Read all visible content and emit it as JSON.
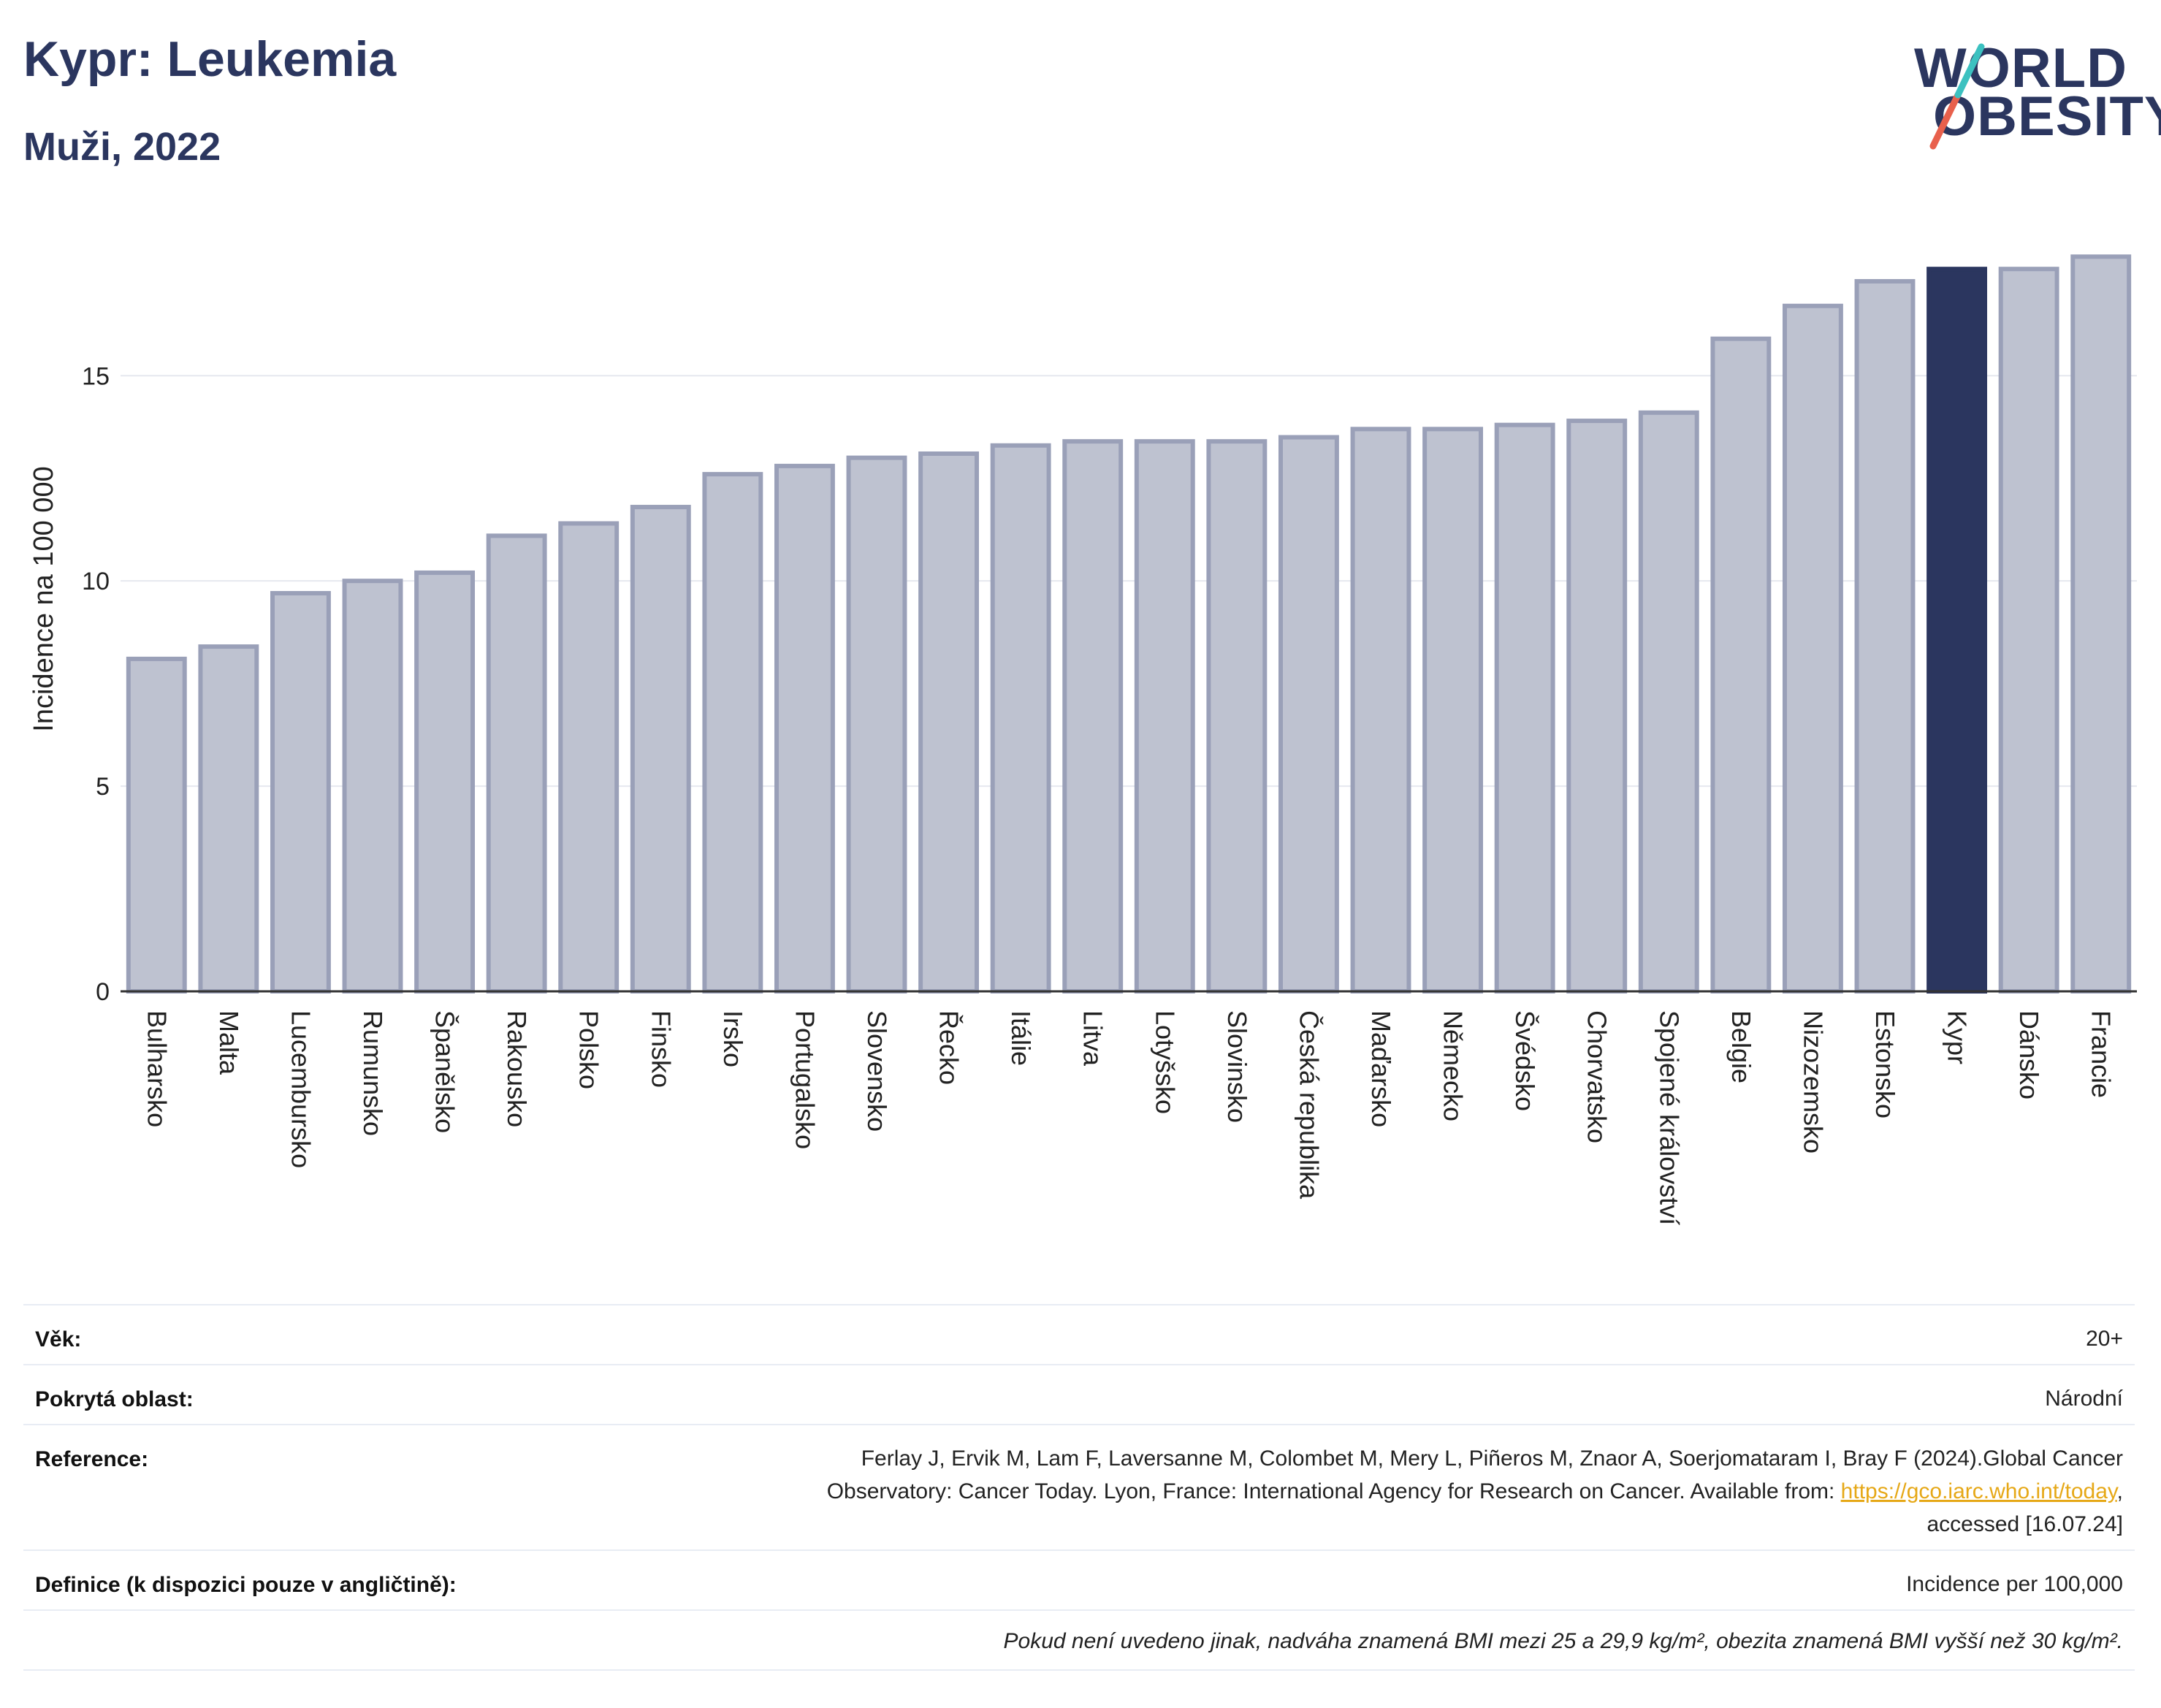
{
  "header": {
    "title": "Kypr: Leukemia",
    "subtitle": "Muži, 2022"
  },
  "logo": {
    "line1": "WORLD",
    "line2": "OBESITY"
  },
  "colors": {
    "bar_default": "#bec2d0",
    "bar_border": "#9aa0b8",
    "bar_highlight": "#2b365f",
    "gridline": "#e6e8ef",
    "text_primary": "#2b365f",
    "logo_slash_teal": "#3cc1c0",
    "logo_slash_red": "#e8604c"
  },
  "chart_data": {
    "type": "bar",
    "ylabel": "Incidence na 100 000",
    "xlabel": "",
    "ylim": [
      0,
      18.6
    ],
    "yticks": [
      0,
      5,
      10,
      15
    ],
    "grid": true,
    "highlight": "Kypr",
    "categories": [
      "Bulharsko",
      "Malta",
      "Lucembursko",
      "Rumunsko",
      "Španělsko",
      "Rakousko",
      "Polsko",
      "Finsko",
      "Irsko",
      "Portugalsko",
      "Slovensko",
      "Řecko",
      "Itálie",
      "Litva",
      "Lotyšsko",
      "Slovinsko",
      "Česká republika",
      "Maďarsko",
      "Německo",
      "Švédsko",
      "Chorvatsko",
      "Spojené království",
      "Belgie",
      "Nizozemsko",
      "Estonsko",
      "Kypr",
      "Dánsko",
      "Francie"
    ],
    "values": [
      8.1,
      8.4,
      9.7,
      10.0,
      10.2,
      11.1,
      11.4,
      11.8,
      12.6,
      12.8,
      13.0,
      13.1,
      13.3,
      13.4,
      13.4,
      13.4,
      13.5,
      13.7,
      13.7,
      13.8,
      13.9,
      14.1,
      15.9,
      16.7,
      17.3,
      17.6,
      17.6,
      17.9
    ]
  },
  "info": {
    "age_label": "Věk:",
    "age_value": "20+",
    "area_label": "Pokrytá oblast:",
    "area_value": "Národní",
    "reference_label": "Reference:",
    "reference_line1": "Ferlay J, Ervik M, Lam F, Laversanne M, Colombet M, Mery L, Piñeros M, Znaor A, Soerjomataram I, Bray F (2024).Global Cancer",
    "reference_line2_pre": "Observatory: Cancer Today. Lyon, France: International Agency for Research on Cancer. Available from: ",
    "reference_link": "https://gco.iarc.who.int/today",
    "reference_line2_post": ",",
    "reference_line3": "accessed [16.07.24]",
    "definition_label": "Definice (k dispozici pouze v angličtině):",
    "definition_value": "Incidence per 100,000",
    "footnote": "Pokud není uvedeno jinak, nadváha znamená BMI mezi 25 a 29,9 kg/m², obezita znamená BMI vyšší než 30 kg/m²."
  }
}
